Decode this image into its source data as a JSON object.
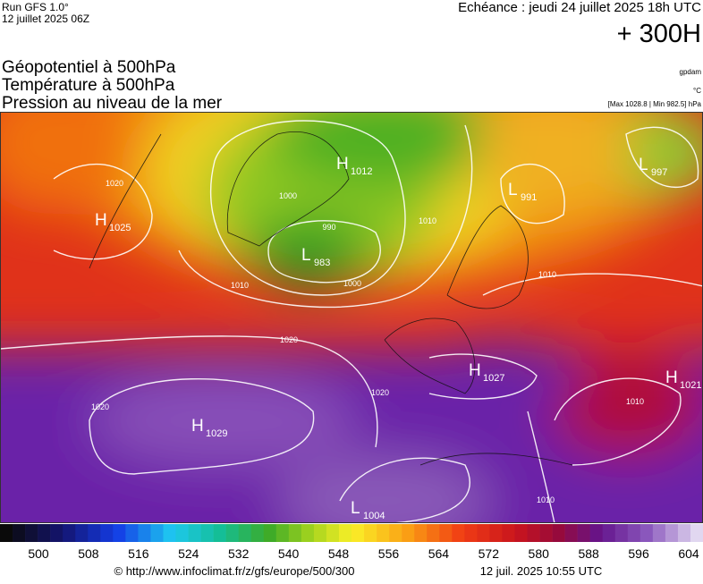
{
  "header": {
    "run": "Run GFS 1.0°",
    "run_date": "12 juillet 2025 06Z",
    "valid": "Echéance : jeudi 24 juillet 2025 18h UTC",
    "lead": "+ 300H",
    "lines": [
      "Géopotentiel à 500hPa",
      "Température à 500hPa",
      "Pression au niveau de la mer"
    ],
    "unit_geo": "gpdam",
    "unit_temp": "°C",
    "range": "[Max 1028.8 | Min 982.5] hPa"
  },
  "centers": [
    {
      "letter": "H",
      "value": "1025"
    },
    {
      "letter": "H",
      "value": "1029"
    },
    {
      "letter": "L",
      "value": "983"
    },
    {
      "letter": "H",
      "value": "1012"
    },
    {
      "letter": "L",
      "value": "991"
    },
    {
      "letter": "L",
      "value": "997"
    },
    {
      "letter": "H",
      "value": "1027"
    },
    {
      "letter": "H",
      "value": "1021"
    },
    {
      "letter": "L",
      "value": "1004"
    }
  ],
  "isobar_labels": [
    "1020",
    "1000",
    "990",
    "1000",
    "1010",
    "1010",
    "1020",
    "1020",
    "1020",
    "1010",
    "1010",
    "1010"
  ],
  "colorbar": {
    "ticks": [
      500,
      508,
      516,
      524,
      532,
      540,
      548,
      556,
      564,
      572,
      580,
      588,
      596,
      604
    ]
  },
  "footer": {
    "source": "© http://www.infoclimat.fr/z/gfs/europe/500/300",
    "generated": "12 juil. 2025 10:55 UTC"
  }
}
